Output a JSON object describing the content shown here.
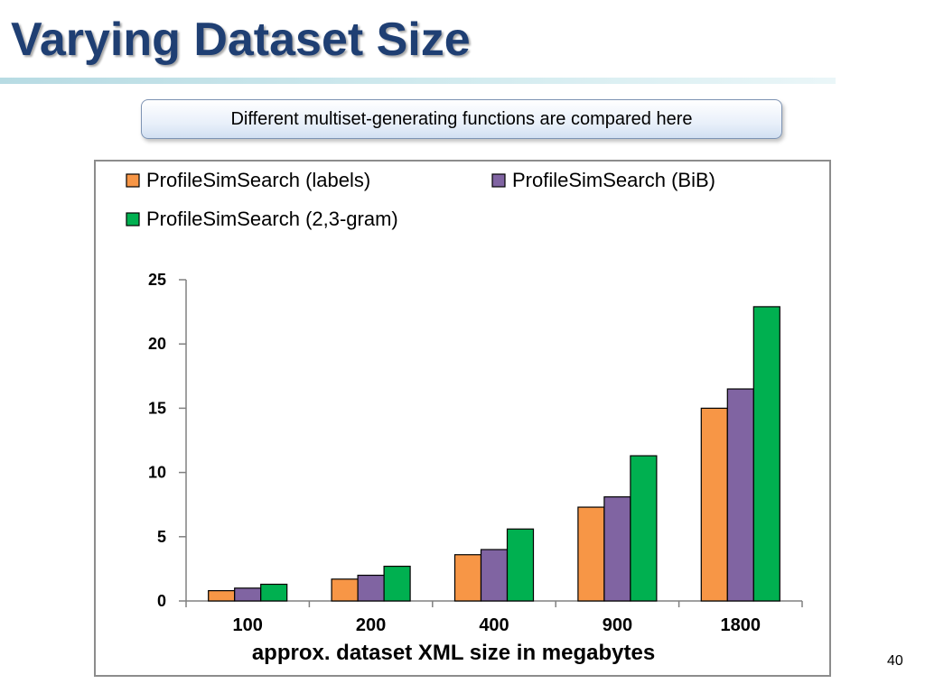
{
  "slide": {
    "title": "Varying Dataset Size",
    "callout": "Different multiset-generating functions are compared here",
    "page_number": "40"
  },
  "colors": {
    "labels": "#f79646",
    "bib": "#8064a2",
    "gram": "#00b050",
    "title": "#1f3f73"
  },
  "chart_data": {
    "type": "bar",
    "title": "",
    "xlabel": "approx. dataset XML size in megabytes",
    "ylabel": "",
    "categories": [
      "100",
      "200",
      "400",
      "900",
      "1800"
    ],
    "ylim": [
      0,
      25
    ],
    "yticks": [
      0,
      5,
      10,
      15,
      20,
      25
    ],
    "grid": false,
    "legend_position": "top",
    "series": [
      {
        "name": "ProfileSimSearch (labels)",
        "color": "#f79646",
        "values": [
          0.8,
          1.7,
          3.6,
          7.3,
          15.0
        ]
      },
      {
        "name": "ProfileSimSearch (BiB)",
        "color": "#8064a2",
        "values": [
          1.0,
          2.0,
          4.0,
          8.1,
          16.5
        ]
      },
      {
        "name": "ProfileSimSearch (2,3-gram)",
        "color": "#00b050",
        "values": [
          1.3,
          2.7,
          5.6,
          11.3,
          22.9
        ]
      }
    ]
  }
}
